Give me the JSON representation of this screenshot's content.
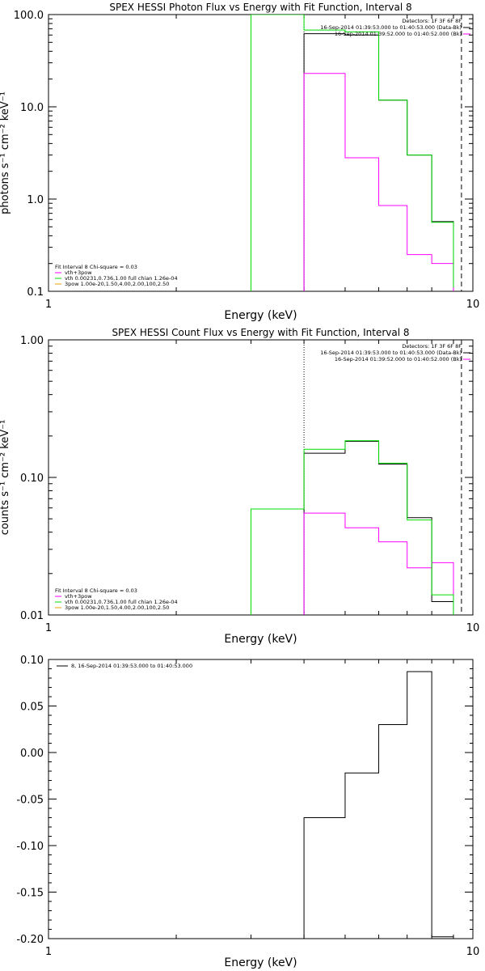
{
  "colors": {
    "black": "#000000",
    "magenta": "#ff00ff",
    "green": "#00dd00",
    "orange": "#e8a000"
  },
  "chart_data": [
    {
      "type": "line",
      "title": "SPEX HESSI Photon Flux vs Energy with Fit Function, Interval 8",
      "xlabel": "Energy (keV)",
      "ylabel": "photons s⁻¹ cm⁻² keV⁻¹",
      "xscale": "log",
      "yscale": "log",
      "xlim": [
        1,
        10
      ],
      "ylim": [
        0.1,
        100
      ],
      "xticks": [
        {
          "value": 1,
          "label": "1"
        },
        {
          "value": 10,
          "label": "10"
        }
      ],
      "yticks": [
        {
          "value": 0.1,
          "label": "0.1"
        },
        {
          "value": 1,
          "label": "1.0"
        },
        {
          "value": 10,
          "label": "10.0"
        },
        {
          "value": 100,
          "label": "100.0"
        }
      ],
      "bin_edges": [
        3,
        4,
        5,
        6,
        7,
        8,
        9
      ],
      "vlines": [
        {
          "x": 4,
          "style": "dotted",
          "color": "#000000"
        },
        {
          "x": 9.4,
          "style": "dashed",
          "color": "#000000"
        }
      ],
      "series": [
        {
          "color": "#000000",
          "values": [
            null,
            62,
            60,
            11.8,
            3.0,
            0.57,
            0.1
          ]
        },
        {
          "color": "#ff00ff",
          "values": [
            null,
            23,
            2.8,
            0.85,
            0.25,
            0.2,
            null
          ]
        },
        {
          "color": "#00dd00",
          "values": [
            100,
            68,
            65,
            11.8,
            3.0,
            0.56,
            0.11
          ]
        }
      ],
      "legend_top": [
        "Detectors: 1F 3F 6F 8F",
        "16-Sep-2014 01:39:53.000 to 01:40:53.000 (Data-Bk)",
        "16-Sep-2014 01:39:52.000 to 01:40:52.000 (Bk)"
      ],
      "legend_top_colors": [
        "",
        "#000000",
        "#ff00ff"
      ],
      "legend_bottom": [
        "Fit Interval 8   Chi-square = 0.03",
        "vth+3pow",
        "vth 0.00231,0.736,1.00   full chian 1.26e-04",
        "3pow 1.00e-20,1.50,4.00,2.00,100,2.50"
      ],
      "legend_bottom_colors": [
        "",
        "#ff00ff",
        "#00dd00",
        "#e8a000"
      ]
    },
    {
      "type": "line",
      "title": "SPEX HESSI Count Flux vs Energy with Fit Function, Interval 8",
      "xlabel": "Energy (keV)",
      "ylabel": "counts s⁻¹ cm⁻² keV⁻¹",
      "xscale": "log",
      "yscale": "log",
      "xlim": [
        1,
        10
      ],
      "ylim": [
        0.01,
        1
      ],
      "xticks": [
        {
          "value": 1,
          "label": "1"
        },
        {
          "value": 10,
          "label": "10"
        }
      ],
      "yticks": [
        {
          "value": 0.01,
          "label": "0.01"
        },
        {
          "value": 0.1,
          "label": "0.10"
        },
        {
          "value": 1,
          "label": "1.00"
        }
      ],
      "bin_edges": [
        3,
        4,
        5,
        6,
        7,
        8,
        9
      ],
      "vlines": [
        {
          "x": 4,
          "style": "dotted",
          "color": "#000000"
        },
        {
          "x": 9.4,
          "style": "dashed",
          "color": "#000000"
        }
      ],
      "series": [
        {
          "color": "#000000",
          "values": [
            null,
            0.15,
            0.183,
            0.125,
            0.051,
            0.0125,
            null
          ]
        },
        {
          "color": "#ff00ff",
          "values": [
            null,
            0.055,
            0.043,
            0.034,
            0.022,
            0.024,
            null
          ]
        },
        {
          "color": "#00dd00",
          "values": [
            0.059,
            0.16,
            0.185,
            0.127,
            0.049,
            0.014,
            null
          ]
        }
      ],
      "legend_top": [
        "Detectors: 1F 3F 6F 8F",
        "16-Sep-2014 01:39:53.000 to 01:40:53.000 (Data-Bk)",
        "16-Sep-2014 01:39:52.000 to 01:40:52.000 (Bk)"
      ],
      "legend_top_colors": [
        "",
        "#000000",
        "#ff00ff"
      ],
      "legend_bottom": [
        "Fit Interval 8   Chi-square = 0.03",
        "vth+3pow",
        "vth 0.00231,0.736,1.00   full chian 1.26e-04",
        "3pow 1.00e-20,1.50,4.00,2.00,100,2.50"
      ],
      "legend_bottom_colors": [
        "",
        "#ff00ff",
        "#00dd00",
        "#e8a000"
      ]
    },
    {
      "type": "line",
      "title": "",
      "xlabel": "Energy (keV)",
      "ylabel": "",
      "xscale": "log",
      "yscale": "linear",
      "xlim": [
        1,
        10
      ],
      "ylim": [
        -0.2,
        0.1
      ],
      "xticks": [
        {
          "value": 1,
          "label": "1"
        },
        {
          "value": 10,
          "label": "10"
        }
      ],
      "yticks": [
        {
          "value": 0.1,
          "label": "0.10"
        },
        {
          "value": 0.05,
          "label": "0.05"
        },
        {
          "value": 0,
          "label": "0.00"
        },
        {
          "value": -0.05,
          "label": "-0.05"
        },
        {
          "value": -0.1,
          "label": "-0.10"
        },
        {
          "value": -0.15,
          "label": "-0.15"
        },
        {
          "value": -0.2,
          "label": "-0.20"
        }
      ],
      "bin_edges": [
        4,
        5,
        6,
        7,
        8,
        9
      ],
      "vlines": [],
      "series": [
        {
          "color": "#000000",
          "values": [
            -0.07,
            -0.022,
            0.03,
            0.087,
            -0.198
          ]
        }
      ],
      "legend_top": [
        "8, 16-Sep-2014 01:39:53.000 to 01:40:53.000"
      ],
      "legend_top_colors": [
        "#000000"
      ],
      "legend_bottom": [],
      "legend_bottom_colors": []
    }
  ]
}
